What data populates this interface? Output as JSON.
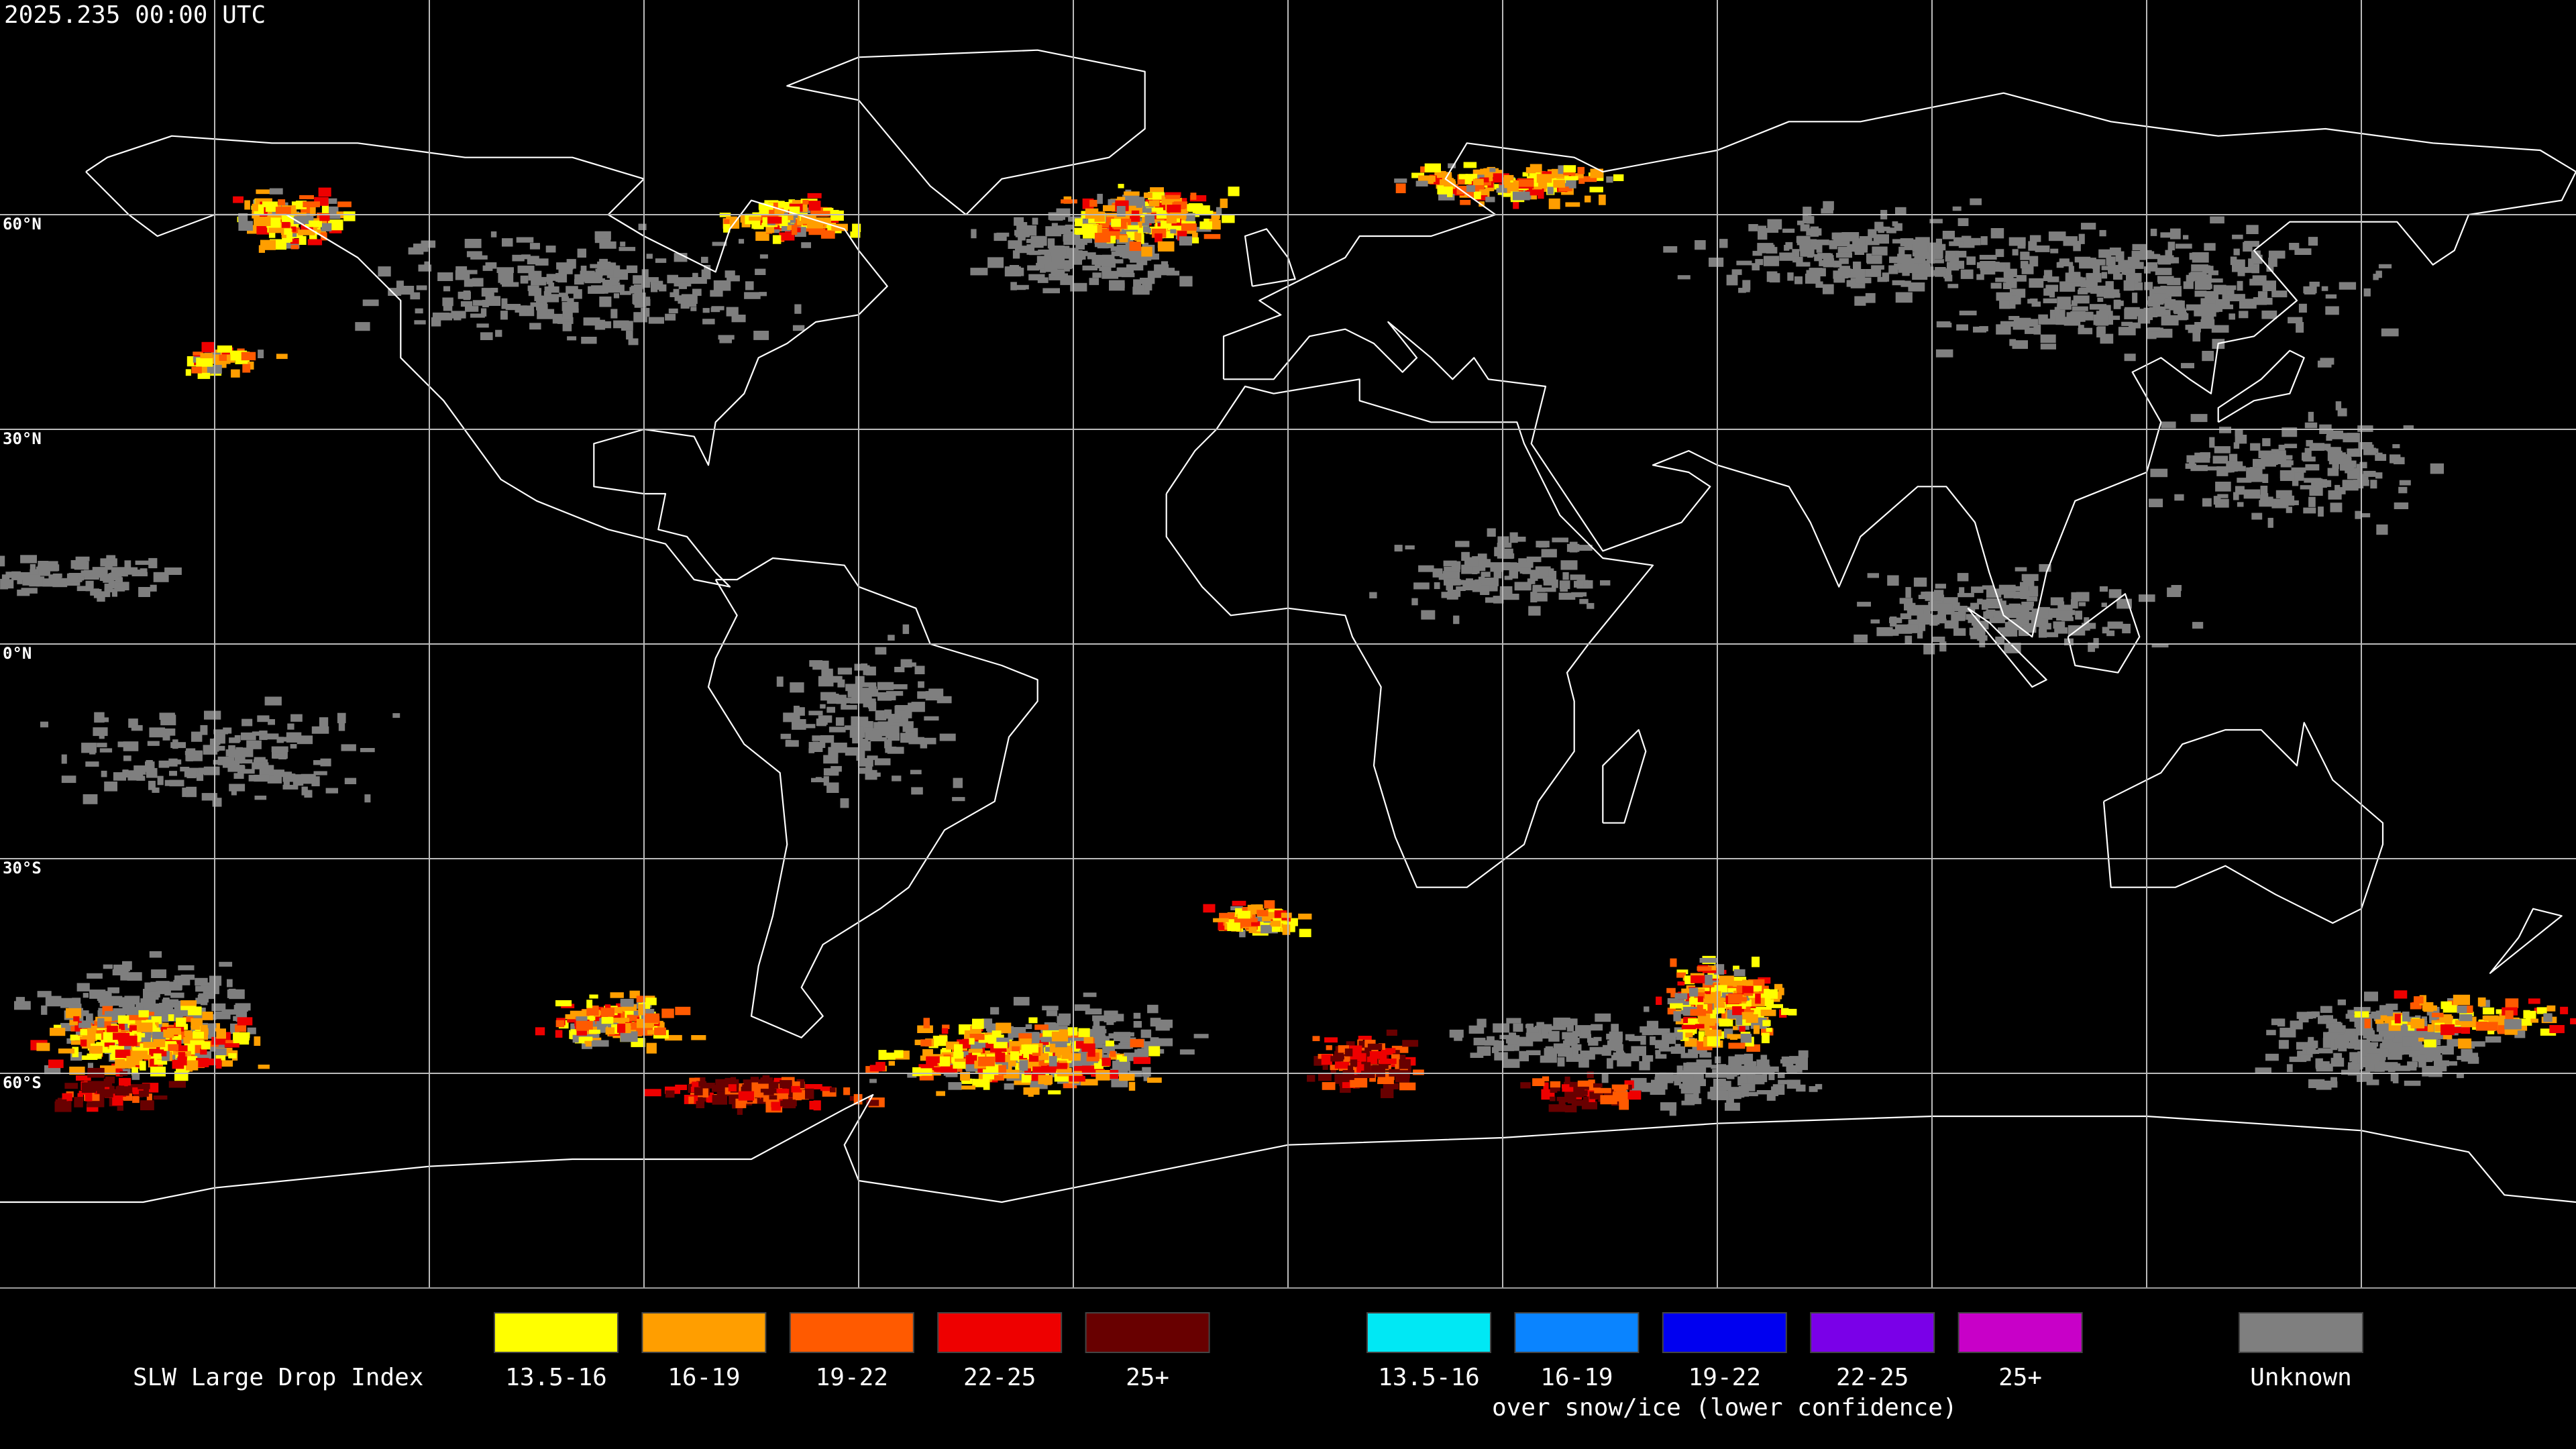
{
  "timestamp": "2025.235 00:00 UTC",
  "map": {
    "latitude_labels": [
      "60°N",
      "30°N",
      "0°N",
      "30°S",
      "60°S"
    ]
  },
  "legend": {
    "title": "SLW Large Drop Index",
    "groups": [
      {
        "items": [
          {
            "label": "13.5-16",
            "color": "#ffff00"
          },
          {
            "label": "16-19",
            "color": "#ff9e00"
          },
          {
            "label": "19-22",
            "color": "#ff5a00"
          },
          {
            "label": "22-25",
            "color": "#ee0000"
          },
          {
            "label": "25+",
            "color": "#680000"
          }
        ]
      },
      {
        "items": [
          {
            "label": "13.5-16",
            "color": "#00e8f4"
          },
          {
            "label": "16-19",
            "color": "#0a84ff"
          },
          {
            "label": "19-22",
            "color": "#0000f0"
          },
          {
            "label": "22-25",
            "color": "#7a00e8"
          },
          {
            "label": "25+",
            "color": "#c800c8"
          }
        ],
        "caption": "over snow/ice (lower confidence)"
      },
      {
        "items": [
          {
            "label": "Unknown",
            "color": "#7f7f7f"
          }
        ]
      }
    ]
  }
}
